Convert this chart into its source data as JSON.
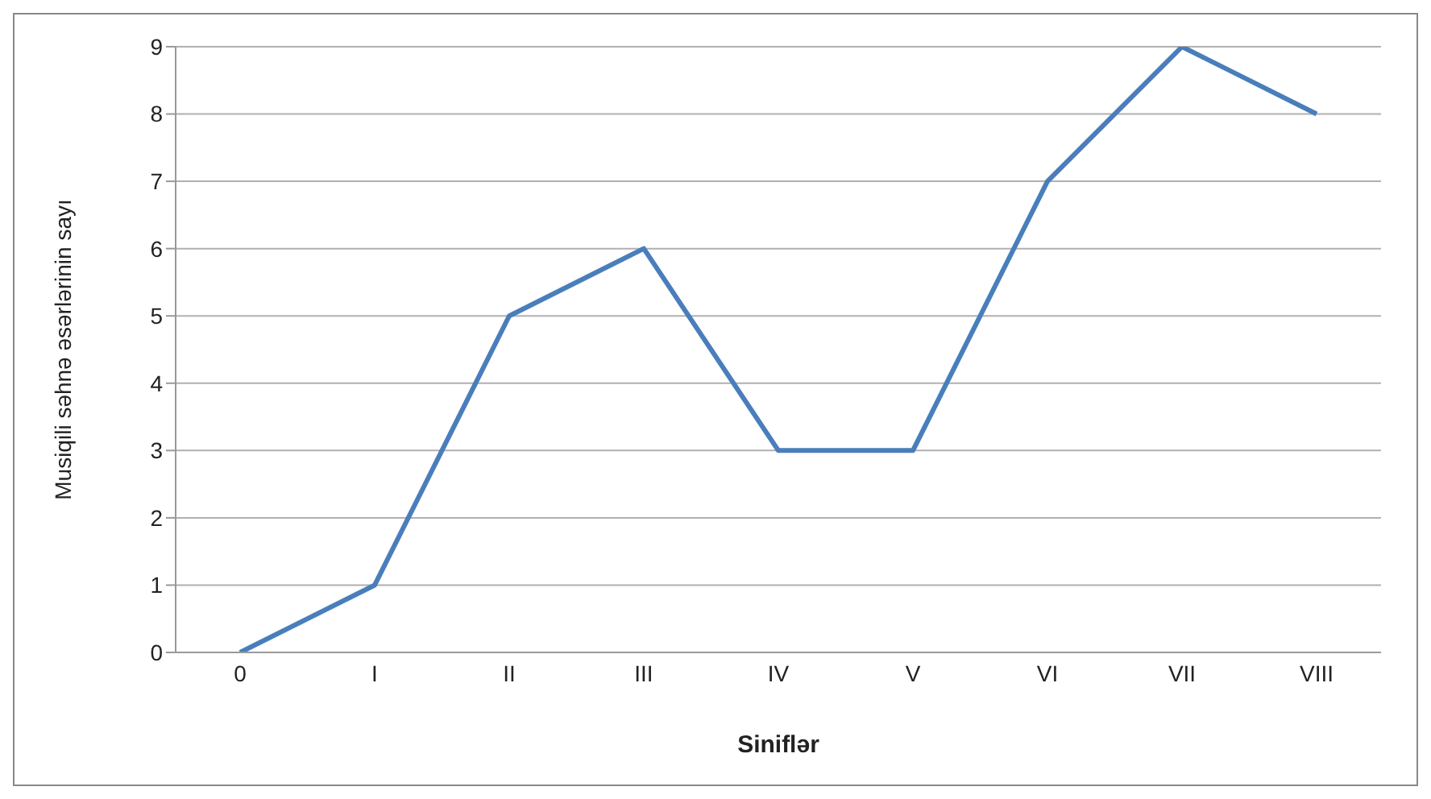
{
  "chart_data": {
    "type": "line",
    "xlabel": "Siniflər",
    "ylabel": "Musiqili səhnə əsərlərinin sayı",
    "categories": [
      "0",
      "I",
      "II",
      "III",
      "IV",
      "V",
      "VI",
      "VII",
      "VIII"
    ],
    "series": [
      {
        "color": "#4a7ebb",
        "values": [
          0,
          1,
          5,
          6,
          3,
          3,
          7,
          9,
          8
        ]
      }
    ],
    "ylim": [
      0,
      9
    ],
    "yticks": [
      0,
      1,
      2,
      3,
      4,
      5,
      6,
      7,
      8,
      9
    ],
    "grid": "y",
    "marker": "none",
    "line_style": "solid"
  }
}
